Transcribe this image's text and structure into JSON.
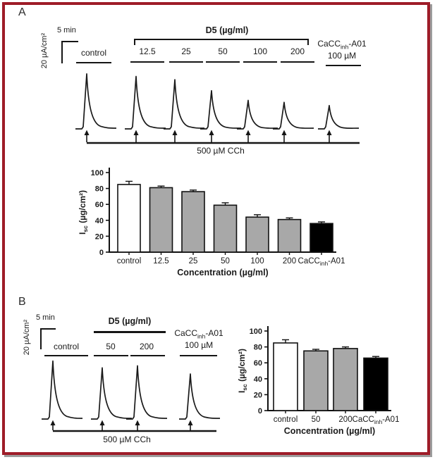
{
  "figure": {
    "border_color": "#9e1c28",
    "shadow_color": "#9c9c9c"
  },
  "panel_a": {
    "label": "A",
    "scale_vertical": "20 µA/cm²",
    "scale_horizontal": "5 min",
    "control_label": "control",
    "d5_header": "D5 (µg/ml)",
    "concentrations": [
      "12.5",
      "25",
      "50",
      "100",
      "200"
    ],
    "inhibitor": {
      "pre": "CaCC",
      "sub": "inh",
      "post": "-A01"
    },
    "inhibitor_dose": "100 µM",
    "stimulus": "500 µM CCh"
  },
  "panel_b": {
    "label": "B",
    "scale_vertical": "20 µA/cm²",
    "scale_horizontal": "5 min",
    "control_label": "control",
    "d5_header": "D5 (µg/ml)",
    "concentrations": [
      "50",
      "200"
    ],
    "inhibitor": {
      "pre": "CaCC",
      "sub": "inh",
      "post": "-A01"
    },
    "inhibitor_dose": "100 µM",
    "stimulus": "500 µM CCh"
  },
  "chart_data": [
    {
      "type": "bar",
      "panel": "A",
      "categories": [
        "control",
        "12.5",
        "25",
        "50",
        "100",
        "200",
        {
          "pre": "CaCC",
          "sub": "inh",
          "post": "-A01"
        }
      ],
      "values": [
        85,
        81,
        76,
        59,
        44,
        41,
        36
      ],
      "errors": [
        4,
        2,
        2,
        3,
        3,
        2,
        2
      ],
      "bar_colors": [
        "#ffffff",
        "#a8a8a8",
        "#a8a8a8",
        "#a8a8a8",
        "#a8a8a8",
        "#a8a8a8",
        "#000000"
      ],
      "xlabel": "Concentration (µg/ml)",
      "ylabel": {
        "pre": "I",
        "sub": "sc",
        "post": " (µg/cm²)"
      },
      "ylim": [
        0,
        100
      ],
      "yticks": [
        0,
        20,
        40,
        60,
        80,
        100
      ],
      "grid": false,
      "legend": "none"
    },
    {
      "type": "bar",
      "panel": "B",
      "categories": [
        "control",
        "50",
        "200",
        {
          "pre": "CaCC",
          "sub": "inh",
          "post": "-A01"
        }
      ],
      "values": [
        85,
        75,
        78,
        66
      ],
      "errors": [
        4,
        2,
        2,
        2
      ],
      "bar_colors": [
        "#ffffff",
        "#a8a8a8",
        "#a8a8a8",
        "#000000"
      ],
      "xlabel": "Concentration (µg/ml)",
      "ylabel": {
        "pre": "I",
        "sub": "sc",
        "post": " (µg/cm²)"
      },
      "ylim": [
        0,
        100
      ],
      "yticks": [
        0,
        20,
        40,
        60,
        80,
        100
      ],
      "grid": false,
      "legend": "none"
    }
  ]
}
